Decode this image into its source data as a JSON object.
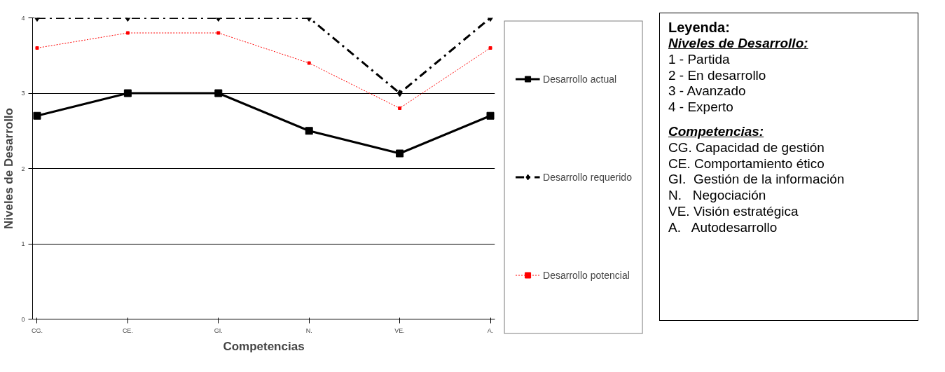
{
  "chart_data": {
    "type": "line",
    "xlabel": "Competencias",
    "ylabel": "Niveles de Desarrollo",
    "categories": [
      "CG.",
      "CE.",
      "GI.",
      "N.",
      "VE.",
      "A."
    ],
    "series": [
      {
        "name": "Desarrollo actual",
        "color": "#000000",
        "values": [
          2.7,
          3,
          3,
          2.5,
          2.2,
          2.7
        ],
        "marker": "square",
        "line_style": "solid"
      },
      {
        "name": "Desarrollo requerido",
        "color": "#000000",
        "values": [
          4,
          4,
          4,
          4,
          3,
          4
        ],
        "marker": "diamond",
        "line_style": "dashed"
      },
      {
        "name": "Desarrollo potencial",
        "color": "#ff0000",
        "values": [
          3.6,
          3.8,
          3.8,
          3.4,
          2.8,
          3.6
        ],
        "marker": "square",
        "line_style": "dotted"
      }
    ],
    "ylim": [
      0,
      4
    ],
    "yticks": [
      0,
      1,
      2,
      3,
      4
    ],
    "grid": "y",
    "legend": "right",
    "annotations": [
      "Leyenda:",
      "Niveles de Desarrollo:",
      "1 - Partida",
      "2 - En desarrollo",
      "3 - Avanzado",
      "4 - Experto",
      "Competencias:",
      "CG. Capacidad de gestión",
      "CE. Comportamiento ético",
      "GI.  Gestión de la información",
      "N.   Negociación",
      "VE. Visión estratégica",
      "A.   Autodesarrollo"
    ]
  }
}
